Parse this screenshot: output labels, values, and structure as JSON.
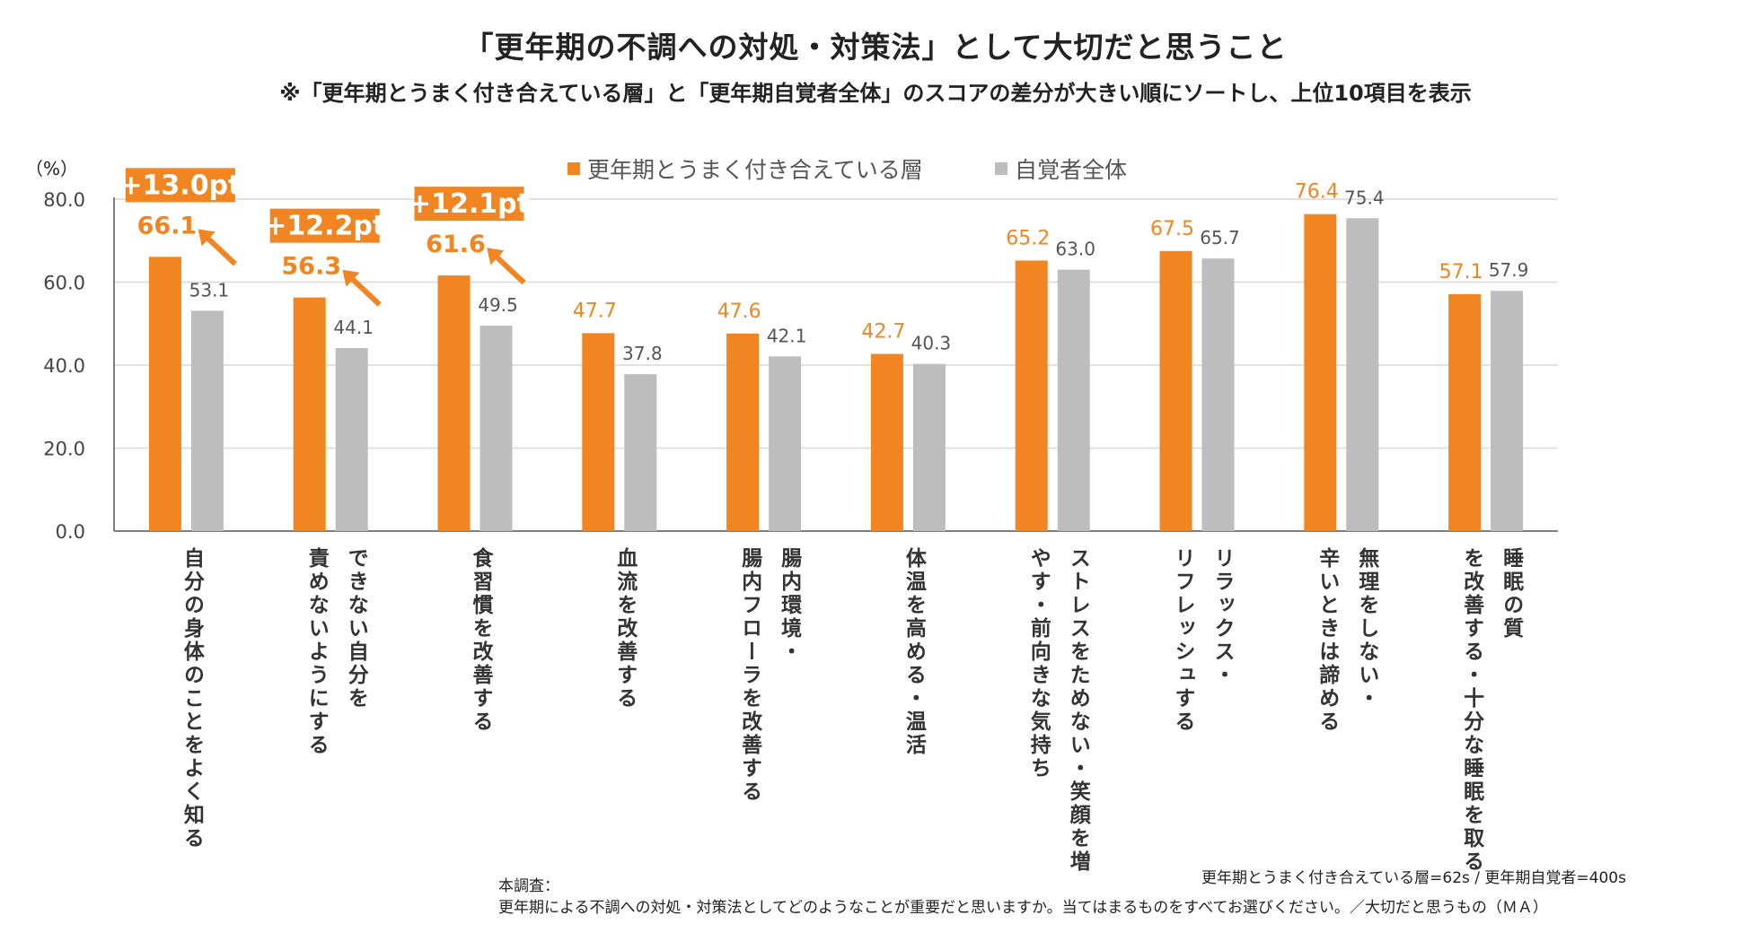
{
  "title": "「更年期の不調への対処・対策法」として大切だと思うこと",
  "subtitle": "※「更年期とうまく付き合えている層」と「更年期自覚者全体」のスコアの差分が大きい順にソートし、上位10項目を表示",
  "unit": "（%）",
  "colors": {
    "orange": "#F08521",
    "gray": "#BDBDBD",
    "grid": "#D9D9D9",
    "axis": "#555555"
  },
  "chart_data": {
    "type": "bar",
    "ylim": [
      0,
      80
    ],
    "yticks": [
      0,
      20,
      40,
      60,
      80
    ],
    "ytick_labels": [
      "0.0",
      "20.0",
      "40.0",
      "60.0",
      "80.0"
    ],
    "categories": [
      "自分の身体のことをよく知る",
      "できない自分を責めないようにする",
      "食習慣を改善する",
      "血流を改善する",
      "腸内環境・腸内フローラを改善する",
      "体温を高める・温活",
      "ストレスをためない・笑顔を増やす・前向きな気持ち",
      "リラックス・リフレッシュする",
      "無理をしない・辛いときは諦める",
      "睡眠の質を改善する・十分な睡眠を取る"
    ],
    "category_lines": [
      [
        "自分の身体のことをよく知る"
      ],
      [
        "できない自分を",
        "責めないようにする"
      ],
      [
        "食習慣を改善する"
      ],
      [
        "血流を改善する"
      ],
      [
        "腸内環境・",
        "腸内フローラを改善する"
      ],
      [
        "体温を高める・温活"
      ],
      [
        "ストレスをためない・笑顔を増",
        "やす・前向きな気持ち"
      ],
      [
        "リラックス・",
        "リフレッシュする"
      ],
      [
        "無理をしない・",
        "辛いときは諦める"
      ],
      [
        "睡眠の質",
        "を改善する・十分な睡眠を取る"
      ]
    ],
    "series": [
      {
        "name": "更年期とうまく付き合えている層",
        "values": [
          66.1,
          56.3,
          61.6,
          47.7,
          47.6,
          42.7,
          65.2,
          67.5,
          76.4,
          57.1
        ],
        "labels": [
          "66.1",
          "56.3",
          "61.6",
          "47.7",
          "47.6",
          "42.7",
          "65.2",
          "67.5",
          "76.4",
          "57.1"
        ]
      },
      {
        "name": "自覚者全体",
        "values": [
          53.1,
          44.1,
          49.5,
          37.8,
          42.1,
          40.3,
          63.0,
          65.7,
          75.4,
          57.9
        ],
        "labels": [
          "53.1",
          "44.1",
          "49.5",
          "37.8",
          "42.1",
          "40.3",
          "63.0",
          "65.7",
          "75.4",
          "57.9"
        ]
      }
    ],
    "highlights": [
      {
        "index": 0,
        "label": "+13.0pt"
      },
      {
        "index": 1,
        "label": "+12.2pt"
      },
      {
        "index": 2,
        "label": "+12.1pt"
      }
    ]
  },
  "footnotes": {
    "sample": "更年期とうまく付き合えている層=62s / 更年期自覚者=400s",
    "survey_label": "本調査：",
    "survey_question": "更年期による不調への対処・対策法としてどのようなことが重要だと思いますか。当てはまるものをすべてお選びください。／大切だと思うもの（ＭＡ）"
  }
}
